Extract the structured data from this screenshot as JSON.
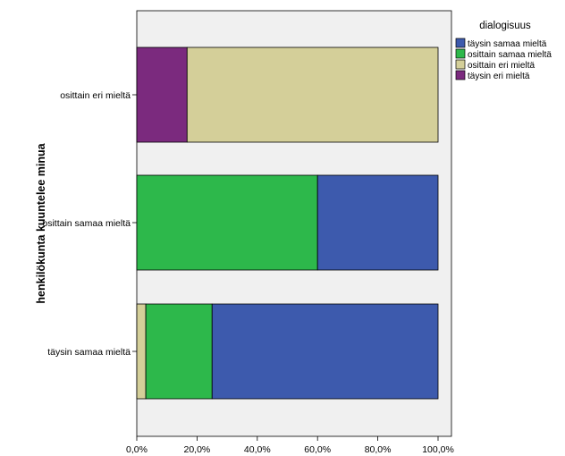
{
  "chart_data": {
    "type": "bar",
    "orientation": "horizontal",
    "stacked": true,
    "normalized_percent": true,
    "ylabel": "henkilökunta kuuntelee minua",
    "xlabel": "",
    "xlim": [
      0,
      100
    ],
    "x_ticks": [
      "0,0%",
      "20,0%",
      "40,0%",
      "60,0%",
      "80,0%",
      "100,0%"
    ],
    "categories": [
      "osittain eri mieltä",
      "osittain samaa mieltä",
      "täysin samaa mieltä"
    ],
    "legend": {
      "title": "dialogisuus",
      "position": "right",
      "entries": [
        "täysin samaa mieltä",
        "osittain samaa mieltä",
        "osittain eri mieltä",
        "täysin eri mieltä"
      ]
    },
    "segment_order": [
      "täysin eri mieltä",
      "osittain eri mieltä",
      "osittain samaa mieltä",
      "täysin samaa mieltä"
    ],
    "series": [
      {
        "name": "täysin samaa mieltä",
        "color": "#3d5aad",
        "values": [
          0,
          40,
          75
        ]
      },
      {
        "name": "osittain samaa mieltä",
        "color": "#2db84b",
        "values": [
          0,
          60,
          22
        ]
      },
      {
        "name": "osittain eri mieltä",
        "color": "#d4cf99",
        "values": [
          83.3,
          0,
          3
        ]
      },
      {
        "name": "täysin eri mieltä",
        "color": "#7b2a7e",
        "values": [
          16.7,
          0,
          0
        ]
      }
    ],
    "plot_background": "#f0f0f0",
    "grid": false
  }
}
